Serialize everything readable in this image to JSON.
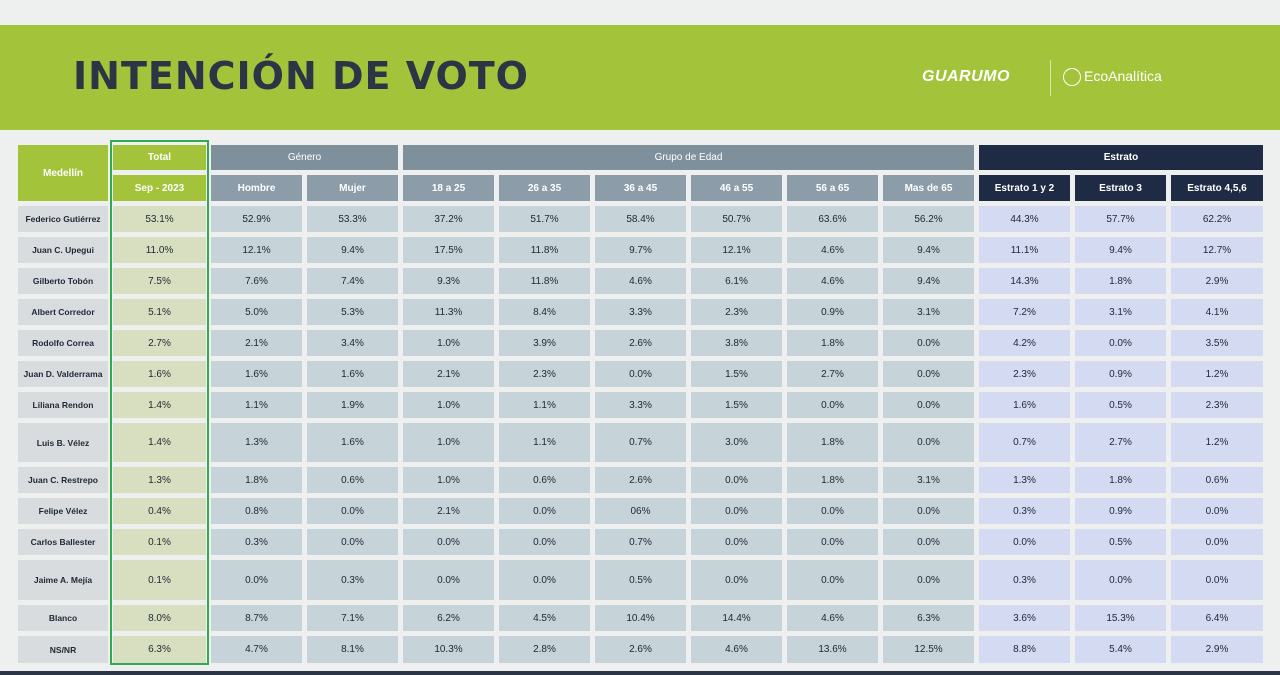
{
  "header": {
    "title": "INTENCIÓN DE VOTO",
    "logos": [
      "GUARUMO",
      "EcoAnalítica"
    ]
  },
  "table": {
    "corner": "Medellín",
    "groups": [
      {
        "label": "Total",
        "sub": [
          "Sep - 2023"
        ]
      },
      {
        "label": "Género",
        "sub": [
          "Hombre",
          "Mujer"
        ]
      },
      {
        "label": "Grupo de Edad",
        "sub": [
          "18 a 25",
          "26 a 35",
          "36 a 45",
          "46 a 55",
          "56 a 65",
          "Mas de 65"
        ]
      },
      {
        "label": "Estrato",
        "sub": [
          "Estrato 1 y 2",
          "Estrato 3",
          "Estrato 4,5,6"
        ]
      }
    ],
    "rows": [
      {
        "name": "Federico Gutiérrez",
        "cells": [
          "53.1%",
          "52.9%",
          "53.3%",
          "37.2%",
          "51.7%",
          "58.4%",
          "50.7%",
          "63.6%",
          "56.2%",
          "44.3%",
          "57.7%",
          "62.2%"
        ]
      },
      {
        "name": "Juan C. Upegui",
        "cells": [
          "11.0%",
          "12.1%",
          "9.4%",
          "17.5%",
          "11.8%",
          "9.7%",
          "12.1%",
          "4.6%",
          "9.4%",
          "11.1%",
          "9.4%",
          "12.7%"
        ]
      },
      {
        "name": "Gilberto Tobón",
        "cells": [
          "7.5%",
          "7.6%",
          "7.4%",
          "9.3%",
          "11.8%",
          "4.6%",
          "6.1%",
          "4.6%",
          "9.4%",
          "14.3%",
          "1.8%",
          "2.9%"
        ]
      },
      {
        "name": "Albert Corredor",
        "cells": [
          "5.1%",
          "5.0%",
          "5.3%",
          "11.3%",
          "8.4%",
          "3.3%",
          "2.3%",
          "0.9%",
          "3.1%",
          "7.2%",
          "3.1%",
          "4.1%"
        ]
      },
      {
        "name": "Rodolfo Correa",
        "cells": [
          "2.7%",
          "2.1%",
          "3.4%",
          "1.0%",
          "3.9%",
          "2.6%",
          "3.8%",
          "1.8%",
          "0.0%",
          "4.2%",
          "0.0%",
          "3.5%"
        ]
      },
      {
        "name": "Juan D. Valderrama",
        "cells": [
          "1.6%",
          "1.6%",
          "1.6%",
          "2.1%",
          "2.3%",
          "0.0%",
          "1.5%",
          "2.7%",
          "0.0%",
          "2.3%",
          "0.9%",
          "1.2%"
        ]
      },
      {
        "name": "Liliana Rendon",
        "cells": [
          "1.4%",
          "1.1%",
          "1.9%",
          "1.0%",
          "1.1%",
          "3.3%",
          "1.5%",
          "0.0%",
          "0.0%",
          "1.6%",
          "0.5%",
          "2.3%"
        ]
      },
      {
        "name": "Luis B. Vélez",
        "cells": [
          "1.4%",
          "1.3%",
          "1.6%",
          "1.0%",
          "1.1%",
          "0.7%",
          "3.0%",
          "1.8%",
          "0.0%",
          "0.7%",
          "2.7%",
          "1.2%"
        ]
      },
      {
        "name": "Juan C. Restrepo",
        "cells": [
          "1.3%",
          "1.8%",
          "0.6%",
          "1.0%",
          "0.6%",
          "2.6%",
          "0.0%",
          "1.8%",
          "3.1%",
          "1.3%",
          "1.8%",
          "0.6%"
        ]
      },
      {
        "name": "Felipe Vélez",
        "cells": [
          "0.4%",
          "0.8%",
          "0.0%",
          "2.1%",
          "0.0%",
          "06%",
          "0.0%",
          "0.0%",
          "0.0%",
          "0.3%",
          "0.9%",
          "0.0%"
        ]
      },
      {
        "name": "Carlos Ballester",
        "cells": [
          "0.1%",
          "0.3%",
          "0.0%",
          "0.0%",
          "0.0%",
          "0.7%",
          "0.0%",
          "0.0%",
          "0.0%",
          "0.0%",
          "0.5%",
          "0.0%"
        ]
      },
      {
        "name": "Jaime A. Mejía",
        "cells": [
          "0.1%",
          "0.0%",
          "0.3%",
          "0.0%",
          "0.0%",
          "0.5%",
          "0.0%",
          "0.0%",
          "0.0%",
          "0.3%",
          "0.0%",
          "0.0%"
        ]
      },
      {
        "name": "Blanco",
        "cells": [
          "8.0%",
          "8.7%",
          "7.1%",
          "6.2%",
          "4.5%",
          "10.4%",
          "14.4%",
          "4.6%",
          "6.3%",
          "3.6%",
          "15.3%",
          "6.4%"
        ]
      },
      {
        "name": "NS/NR",
        "cells": [
          "6.3%",
          "4.7%",
          "8.1%",
          "10.3%",
          "2.8%",
          "2.6%",
          "4.6%",
          "13.6%",
          "12.5%",
          "8.8%",
          "5.4%",
          "2.9%"
        ]
      }
    ]
  }
}
